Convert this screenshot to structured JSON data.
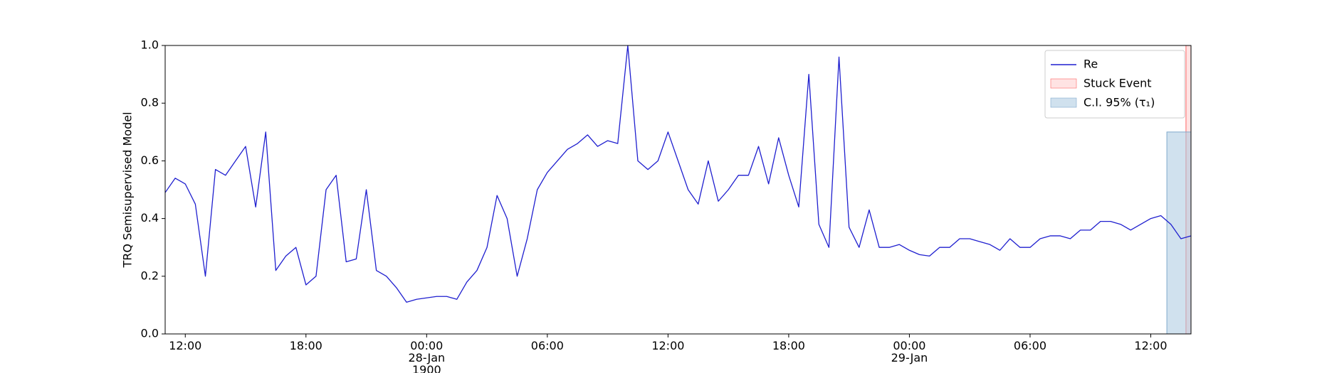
{
  "chart_data": {
    "type": "line",
    "ylabel": "TRQ Semisupervised Model",
    "x": [
      "1900-01-27T11:00",
      "1900-01-27T11:30",
      "1900-01-27T12:00",
      "1900-01-27T12:30",
      "1900-01-27T13:00",
      "1900-01-27T13:30",
      "1900-01-27T14:00",
      "1900-01-27T14:30",
      "1900-01-27T15:00",
      "1900-01-27T15:30",
      "1900-01-27T16:00",
      "1900-01-27T16:30",
      "1900-01-27T17:00",
      "1900-01-27T17:30",
      "1900-01-27T18:00",
      "1900-01-27T18:30",
      "1900-01-27T19:00",
      "1900-01-27T19:30",
      "1900-01-27T20:00",
      "1900-01-27T20:30",
      "1900-01-27T21:00",
      "1900-01-27T21:30",
      "1900-01-27T22:00",
      "1900-01-27T22:30",
      "1900-01-27T23:00",
      "1900-01-27T23:30",
      "1900-01-28T00:00",
      "1900-01-28T00:30",
      "1900-01-28T01:00",
      "1900-01-28T01:30",
      "1900-01-28T02:00",
      "1900-01-28T02:30",
      "1900-01-28T03:00",
      "1900-01-28T03:30",
      "1900-01-28T04:00",
      "1900-01-28T04:30",
      "1900-01-28T05:00",
      "1900-01-28T05:30",
      "1900-01-28T06:00",
      "1900-01-28T06:30",
      "1900-01-28T07:00",
      "1900-01-28T07:30",
      "1900-01-28T08:00",
      "1900-01-28T08:30",
      "1900-01-28T09:00",
      "1900-01-28T09:30",
      "1900-01-28T10:00",
      "1900-01-28T10:30",
      "1900-01-28T11:00",
      "1900-01-28T11:30",
      "1900-01-28T12:00",
      "1900-01-28T12:30",
      "1900-01-28T13:00",
      "1900-01-28T13:30",
      "1900-01-28T14:00",
      "1900-01-28T14:30",
      "1900-01-28T15:00",
      "1900-01-28T15:30",
      "1900-01-28T16:00",
      "1900-01-28T16:30",
      "1900-01-28T17:00",
      "1900-01-28T17:30",
      "1900-01-28T18:00",
      "1900-01-28T18:30",
      "1900-01-28T19:00",
      "1900-01-28T19:30",
      "1900-01-28T20:00",
      "1900-01-28T20:30",
      "1900-01-28T21:00",
      "1900-01-28T21:30",
      "1900-01-28T22:00",
      "1900-01-28T22:30",
      "1900-01-28T23:00",
      "1900-01-28T23:30",
      "1900-01-29T00:00",
      "1900-01-29T00:30",
      "1900-01-29T01:00",
      "1900-01-29T01:30",
      "1900-01-29T02:00",
      "1900-01-29T02:30",
      "1900-01-29T03:00",
      "1900-01-29T03:30",
      "1900-01-29T04:00",
      "1900-01-29T04:30",
      "1900-01-29T05:00",
      "1900-01-29T05:30",
      "1900-01-29T06:00",
      "1900-01-29T06:30",
      "1900-01-29T07:00",
      "1900-01-29T07:30",
      "1900-01-29T08:00",
      "1900-01-29T08:30",
      "1900-01-29T09:00",
      "1900-01-29T09:30",
      "1900-01-29T10:00",
      "1900-01-29T10:30",
      "1900-01-29T11:00",
      "1900-01-29T11:30",
      "1900-01-29T12:00",
      "1900-01-29T12:30",
      "1900-01-29T13:00",
      "1900-01-29T13:30",
      "1900-01-29T14:00"
    ],
    "series": [
      {
        "name": "Re",
        "color": "#1f1fcf",
        "values": [
          0.49,
          0.54,
          0.52,
          0.45,
          0.2,
          0.57,
          0.55,
          0.6,
          0.65,
          0.44,
          0.7,
          0.22,
          0.27,
          0.3,
          0.17,
          0.2,
          0.5,
          0.55,
          0.25,
          0.26,
          0.5,
          0.22,
          0.2,
          0.16,
          0.11,
          0.12,
          0.125,
          0.13,
          0.13,
          0.12,
          0.18,
          0.22,
          0.3,
          0.48,
          0.4,
          0.2,
          0.33,
          0.5,
          0.56,
          0.6,
          0.64,
          0.66,
          0.69,
          0.65,
          0.67,
          0.66,
          1.0,
          0.6,
          0.57,
          0.6,
          0.7,
          0.6,
          0.5,
          0.45,
          0.6,
          0.46,
          0.5,
          0.55,
          0.55,
          0.65,
          0.52,
          0.68,
          0.55,
          0.44,
          0.9,
          0.38,
          0.3,
          0.96,
          0.37,
          0.3,
          0.43,
          0.3,
          0.3,
          0.31,
          0.29,
          0.275,
          0.27,
          0.3,
          0.3,
          0.33,
          0.33,
          0.32,
          0.31,
          0.29,
          0.33,
          0.3,
          0.3,
          0.33,
          0.34,
          0.34,
          0.33,
          0.36,
          0.36,
          0.39,
          0.39,
          0.38,
          0.36,
          0.38,
          0.4,
          0.41,
          0.38,
          0.33,
          0.34
        ]
      }
    ],
    "spans": [
      {
        "name": "Stuck Event",
        "color": "#ffcccc",
        "edge": "#ff6666",
        "start": "1900-01-29T13:45",
        "end": "1900-01-29T14:00",
        "ylim": [
          0,
          1
        ]
      },
      {
        "name": "C.I. 95% (τ₁)",
        "color": "#a9c8e0",
        "edge": "#7fa9cc",
        "start": "1900-01-29T12:48",
        "end": "1900-01-29T14:00",
        "ylim": [
          0,
          0.7
        ]
      }
    ],
    "xlim": [
      "1900-01-27T11:00",
      "1900-01-29T14:00"
    ],
    "xticks": [
      {
        "value": "1900-01-27T12:00",
        "label": "12:00"
      },
      {
        "value": "1900-01-27T18:00",
        "label": "18:00"
      },
      {
        "value": "1900-01-28T00:00",
        "label": "00:00\n28-Jan\n1900"
      },
      {
        "value": "1900-01-28T06:00",
        "label": "06:00"
      },
      {
        "value": "1900-01-28T12:00",
        "label": "12:00"
      },
      {
        "value": "1900-01-28T18:00",
        "label": "18:00"
      },
      {
        "value": "1900-01-29T00:00",
        "label": "00:00\n29-Jan"
      },
      {
        "value": "1900-01-29T06:00",
        "label": "06:00"
      },
      {
        "value": "1900-01-29T12:00",
        "label": "12:00"
      }
    ],
    "ylim": [
      0,
      1
    ],
    "yticks": [
      {
        "value": 0,
        "label": "0.0"
      },
      {
        "value": 0.2,
        "label": "0.2"
      },
      {
        "value": 0.4,
        "label": "0.4"
      },
      {
        "value": 0.6,
        "label": "0.6"
      },
      {
        "value": 0.8,
        "label": "0.8"
      },
      {
        "value": 1,
        "label": "1.0"
      }
    ],
    "legend": "upper right"
  }
}
